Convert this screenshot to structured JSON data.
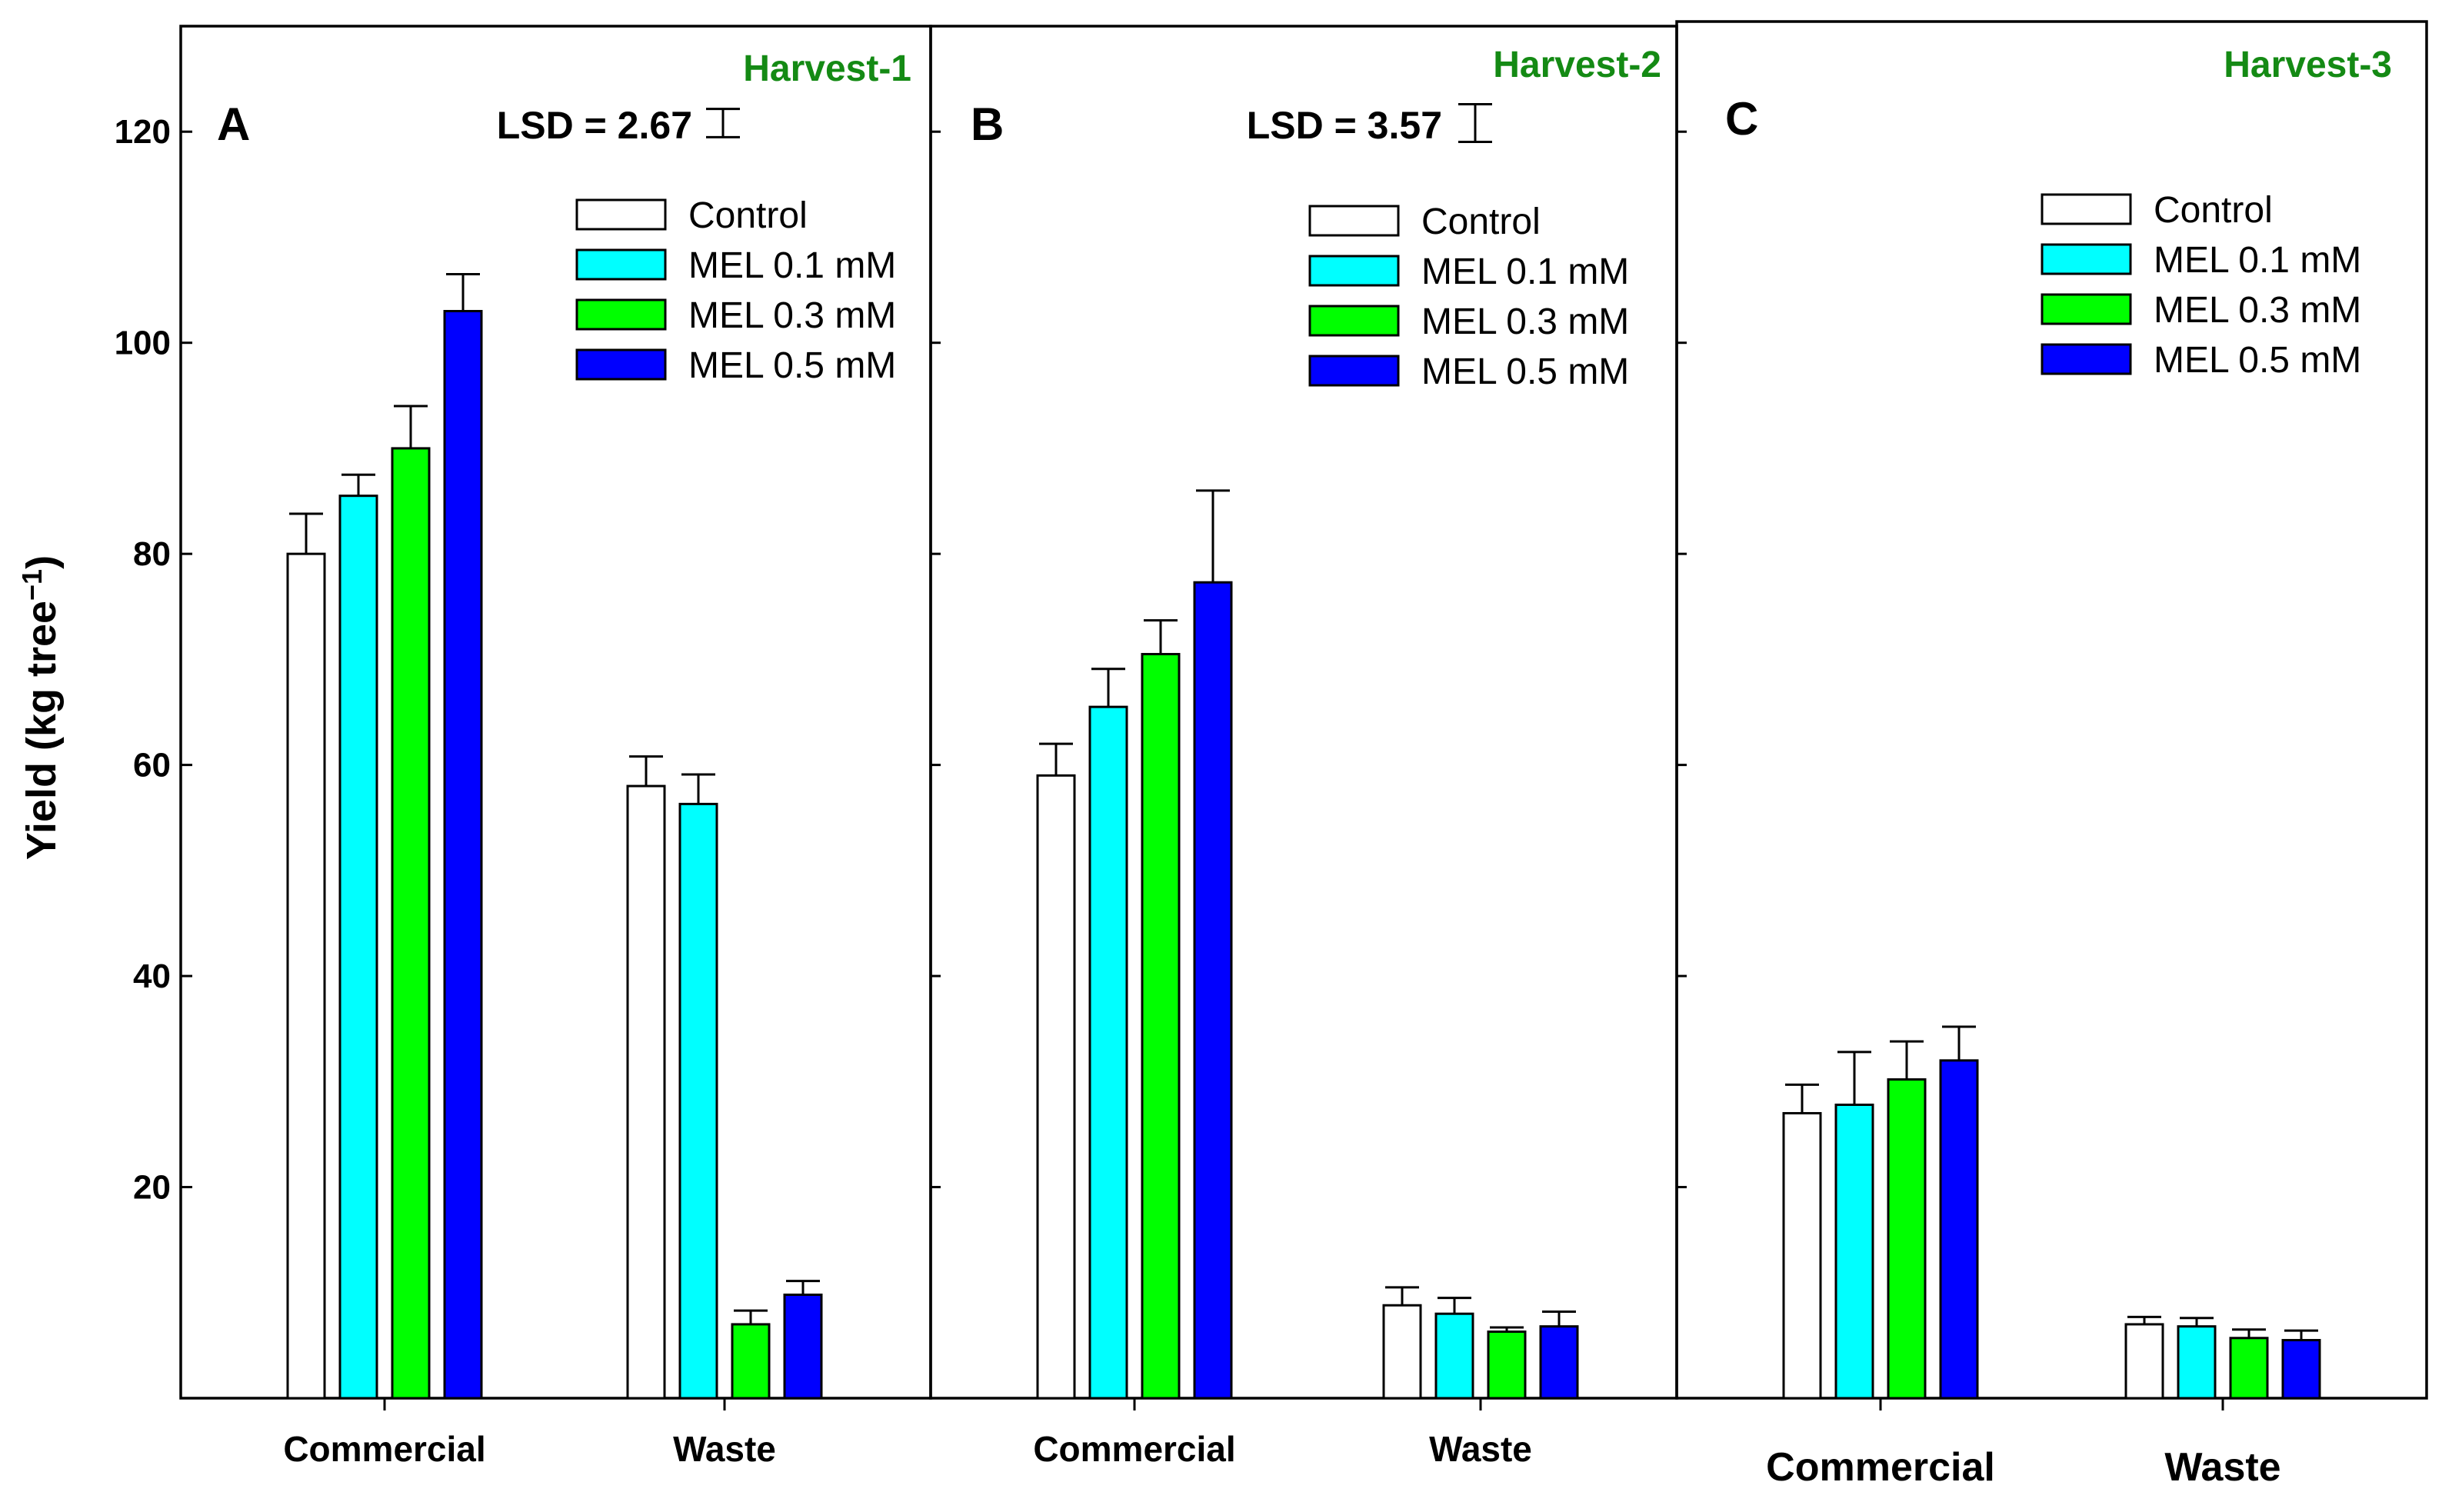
{
  "chart_data": {
    "type": "bar",
    "ylabel": "Yield (kg tree",
    "ylabel_sup": "−1",
    "ylabel_close": ")",
    "ylim": [
      0,
      130
    ],
    "yticks": [
      20,
      40,
      60,
      80,
      100,
      120
    ],
    "categories": [
      "Commercial",
      "Waste"
    ],
    "series_names": [
      "Control",
      "MEL 0.1 mM",
      "MEL 0.3 mM",
      "MEL 0.5 mM"
    ],
    "series_colors": [
      "#ffffff",
      "#00ffff",
      "#00ff00",
      "#0000ff"
    ],
    "harvest_color": "#148a14",
    "panels": [
      {
        "letter": "A",
        "harvest": "Harvest-1",
        "lsd_label": "LSD = 2.67",
        "lsd_value": 2.67,
        "values": {
          "Commercial": [
            80,
            85.5,
            90,
            103
          ],
          "Waste": [
            58,
            56.3,
            7,
            9.8
          ]
        },
        "errors": {
          "Commercial": [
            3.8,
            2,
            4,
            3.5
          ],
          "Waste": [
            2.8,
            2.8,
            1.3,
            1.3
          ]
        }
      },
      {
        "letter": "B",
        "harvest": "Harvest-2",
        "lsd_label": "LSD = 3.57",
        "lsd_value": 3.57,
        "values": {
          "Commercial": [
            59,
            65.5,
            70.5,
            77.3
          ],
          "Waste": [
            8.8,
            8,
            6.3,
            6.8
          ]
        },
        "errors": {
          "Commercial": [
            3,
            3.6,
            3.2,
            8.7
          ],
          "Waste": [
            1.7,
            1.5,
            0.4,
            1.4
          ]
        }
      },
      {
        "letter": "C",
        "harvest": "Harvest-3",
        "lsd_label": "",
        "lsd_value": null,
        "values": {
          "Commercial": [
            27,
            27.8,
            30.2,
            32
          ],
          "Waste": [
            7,
            6.8,
            5.7,
            5.5
          ]
        },
        "errors": {
          "Commercial": [
            2.7,
            5,
            3.6,
            3.2
          ],
          "Waste": [
            0.7,
            0.8,
            0.8,
            0.9
          ]
        }
      }
    ]
  }
}
